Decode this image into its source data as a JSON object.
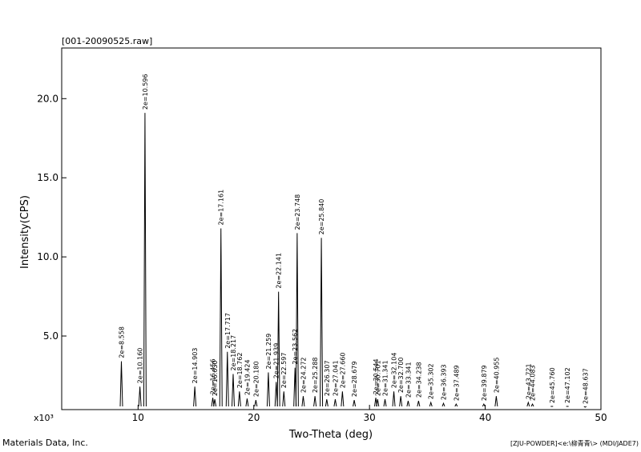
{
  "chart_data": {
    "type": "xrd",
    "title": "[001-20090525.raw]",
    "x_label": "Two-Theta (deg)",
    "y_label": "Intensity(CPS)",
    "y_multiplier": "x10³",
    "footer_left": "Materials Data, Inc.",
    "footer_right": "[ZJU-POWDER]<e:\\柳青青\\> (MDI/JADE7)",
    "xlim": [
      3.4,
      50
    ],
    "xticks": [
      10,
      20,
      30,
      40,
      50
    ],
    "ylim": [
      0.35,
      23.2
    ],
    "yticks": [
      {
        "value": 5,
        "label": "5.0"
      },
      {
        "value": 10,
        "label": "10.0"
      },
      {
        "value": 15,
        "label": "15.0"
      },
      {
        "value": 20,
        "label": "20.0"
      }
    ],
    "color": "#000000",
    "x": [
      8.558,
      10.16,
      10.596,
      14.903,
      16.456,
      16.63,
      17.161,
      17.717,
      18.217,
      18.762,
      19.424,
      20.18,
      21.259,
      21.939,
      22.141,
      22.597,
      23.562,
      23.748,
      24.272,
      25.288,
      25.84,
      26.307,
      27.041,
      27.66,
      28.679,
      30.544,
      30.701,
      31.341,
      32.104,
      32.7,
      33.341,
      34.238,
      35.302,
      36.393,
      37.489,
      39.879,
      40.955,
      43.721,
      44.083,
      45.76,
      47.102,
      48.637
    ],
    "values": [
      3.4,
      1.8,
      19.1,
      1.8,
      1.1,
      1.0,
      11.8,
      4.0,
      2.6,
      1.5,
      1.05,
      0.95,
      2.7,
      2.1,
      7.8,
      1.5,
      3.0,
      11.5,
      1.2,
      1.2,
      11.2,
      1.0,
      1.0,
      1.5,
      0.95,
      1.1,
      1.0,
      1.0,
      1.5,
      1.2,
      0.9,
      0.9,
      0.8,
      0.75,
      0.7,
      0.7,
      1.2,
      0.8,
      0.7,
      0.55,
      0.55,
      0.5
    ],
    "peak_labels": [
      "2e=8.558",
      "2e=10.160",
      "2e=10.596",
      "2e=14.903",
      "2e=16.456",
      "2e=16.630",
      "2e=17.161",
      "2e=17.717",
      "2e=18.217",
      "2e=18.762",
      "2e=19.424",
      "2e=20.180",
      "2e=21.259",
      "2e=21.939",
      "2e=22.141",
      "2e=22.597",
      "2e=23.562",
      "2e=23.748",
      "2e=24.272",
      "2e=25.288",
      "2e=25.840",
      "2e=26.307",
      "2e=27.041",
      "2e=27.660",
      "2e=28.679",
      "2e=30.544",
      "2e=30.701",
      "2e=31.341",
      "2e=32.104",
      "2e=32.700",
      "2e=33.341",
      "2e=34.238",
      "2e=35.302",
      "2e=36.393",
      "2e=37.489",
      "2e=39.879",
      "2e=40.955",
      "2e=43.721",
      "2e=44.083",
      "2e=45.760",
      "2e=47.102",
      "2e=48.637"
    ]
  }
}
